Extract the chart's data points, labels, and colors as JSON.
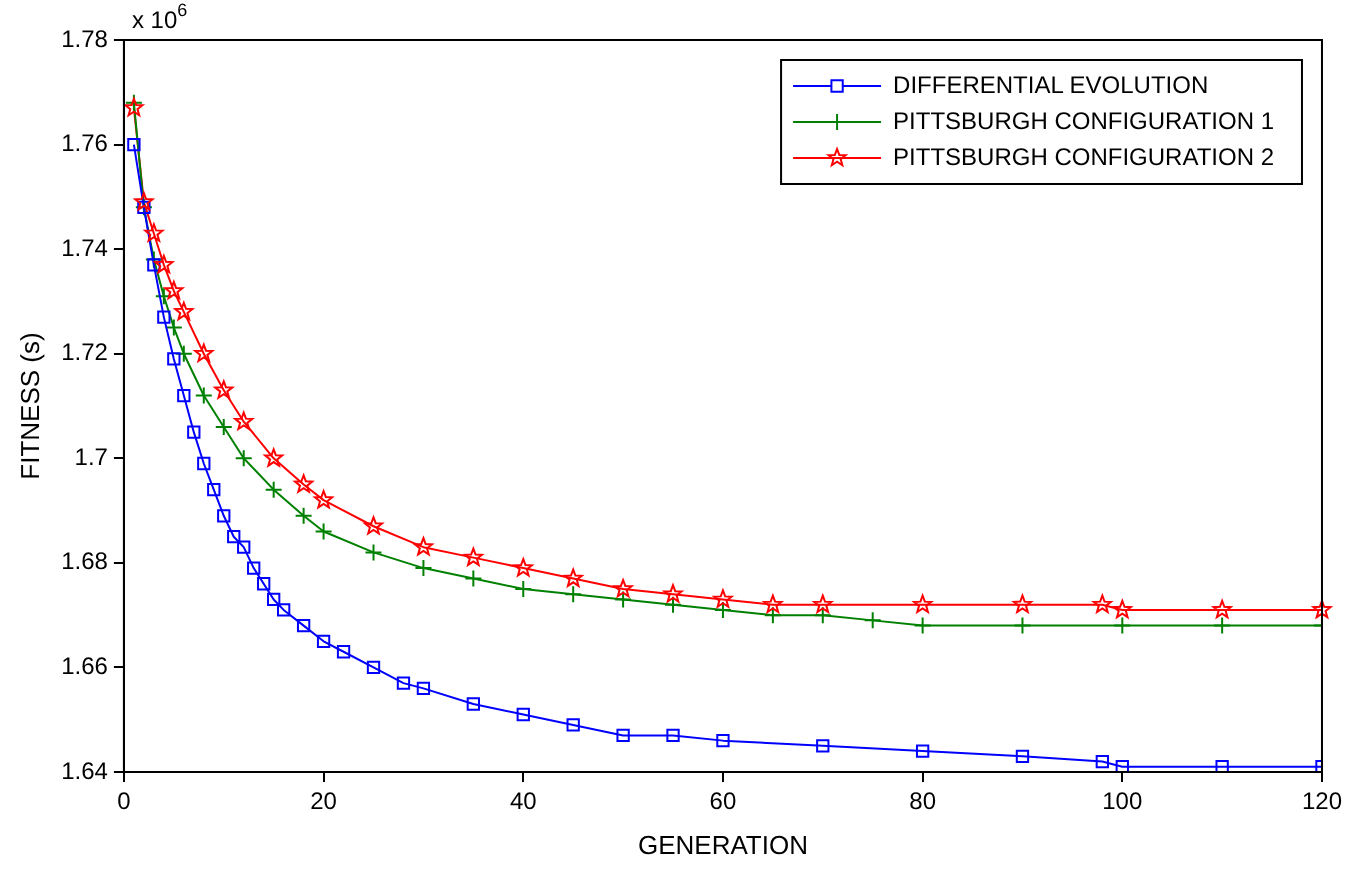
{
  "chart_data": {
    "type": "line",
    "xlabel": "GENERATION",
    "ylabel": "FITNESS (s)",
    "annotations": [
      "x 10$^{6}$"
    ],
    "xlim": [
      0,
      120
    ],
    "xticks": [
      0,
      20,
      40,
      60,
      80,
      100,
      120
    ],
    "ylim": [
      1.64,
      1.78
    ],
    "yticks": [
      1.64,
      1.66,
      1.68,
      1.7,
      1.72,
      1.74,
      1.76,
      1.78
    ],
    "grid": false,
    "legend": "top right",
    "line_style": "solid",
    "series": [
      {
        "name": "DIFFERENTIAL EVOLUTION",
        "color": "#0000ff",
        "marker": "square",
        "x": [
          1,
          2,
          3,
          4,
          5,
          6,
          7,
          8,
          9,
          10,
          11,
          12,
          13,
          14,
          15,
          16,
          18,
          20,
          22,
          25,
          28,
          30,
          35,
          40,
          45,
          50,
          55,
          60,
          70,
          80,
          90,
          98,
          100,
          110,
          120
        ],
        "values": [
          1.76,
          1.748,
          1.737,
          1.727,
          1.719,
          1.712,
          1.705,
          1.699,
          1.694,
          1.689,
          1.685,
          1.683,
          1.679,
          1.676,
          1.673,
          1.671,
          1.668,
          1.665,
          1.663,
          1.66,
          1.657,
          1.656,
          1.653,
          1.651,
          1.649,
          1.647,
          1.647,
          1.646,
          1.645,
          1.644,
          1.643,
          1.642,
          1.641,
          1.641,
          1.641
        ]
      },
      {
        "name": "PITTSBURGH CONFIGURATION 1",
        "color": "#008000",
        "marker": "cross",
        "x": [
          1,
          2,
          3,
          4,
          5,
          6,
          8,
          10,
          12,
          15,
          18,
          20,
          25,
          30,
          35,
          40,
          45,
          50,
          55,
          60,
          65,
          70,
          75,
          80,
          90,
          100,
          110,
          120
        ],
        "values": [
          1.768,
          1.748,
          1.738,
          1.731,
          1.725,
          1.72,
          1.712,
          1.706,
          1.7,
          1.694,
          1.689,
          1.686,
          1.682,
          1.679,
          1.677,
          1.675,
          1.674,
          1.673,
          1.672,
          1.671,
          1.67,
          1.67,
          1.669,
          1.668,
          1.668,
          1.668,
          1.668,
          1.668
        ]
      },
      {
        "name": "PITTSBURGH CONFIGURATION 2",
        "color": "#ff0000",
        "marker": "star",
        "x": [
          1,
          2,
          3,
          4,
          5,
          6,
          8,
          10,
          12,
          15,
          18,
          20,
          25,
          30,
          35,
          40,
          45,
          50,
          55,
          60,
          65,
          70,
          80,
          90,
          98,
          100,
          110,
          120
        ],
        "values": [
          1.767,
          1.749,
          1.743,
          1.737,
          1.732,
          1.728,
          1.72,
          1.713,
          1.707,
          1.7,
          1.695,
          1.692,
          1.687,
          1.683,
          1.681,
          1.679,
          1.677,
          1.675,
          1.674,
          1.673,
          1.672,
          1.672,
          1.672,
          1.672,
          1.672,
          1.671,
          1.671,
          1.671
        ]
      }
    ]
  }
}
